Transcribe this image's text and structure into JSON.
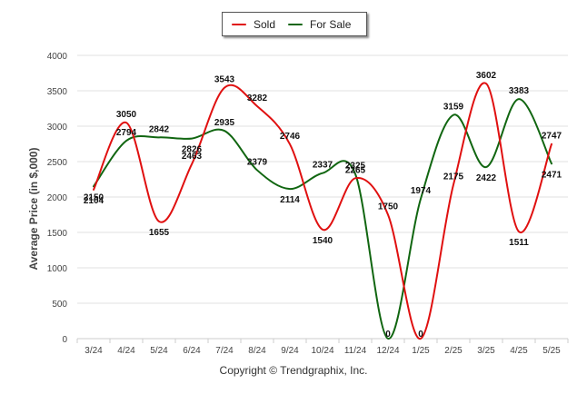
{
  "chart_data": {
    "type": "line",
    "title": "",
    "xlabel": "",
    "ylabel": "Average Price (in $,000)",
    "categories": [
      "3/24",
      "4/24",
      "5/24",
      "6/24",
      "7/24",
      "8/24",
      "9/24",
      "10/24",
      "11/24",
      "12/24",
      "1/25",
      "2/25",
      "3/25",
      "4/25",
      "5/25"
    ],
    "ylim": [
      0,
      4000
    ],
    "yticks": [
      0,
      500,
      1000,
      1500,
      2000,
      2500,
      3000,
      3500,
      4000
    ],
    "grid": true,
    "legend_position": "top-center",
    "series": [
      {
        "name": "Sold",
        "color": "#e01010",
        "values": [
          2104,
          3050,
          1655,
          2463,
          3543,
          3282,
          2746,
          1540,
          2265,
          1750,
          0,
          2175,
          3602,
          1511,
          2747
        ]
      },
      {
        "name": "For Sale",
        "color": "#116611",
        "values": [
          2150,
          2794,
          2842,
          2826,
          2935,
          2379,
          2114,
          2337,
          2325,
          0,
          1974,
          3159,
          2422,
          3383,
          2471
        ]
      }
    ]
  },
  "credit": "Copyright © Trendgraphix, Inc."
}
